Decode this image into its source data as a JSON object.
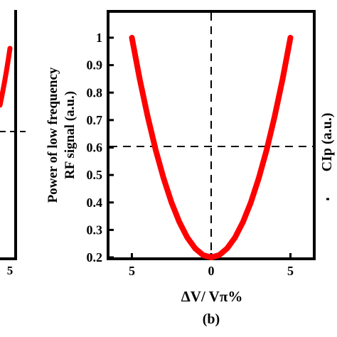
{
  "chart_data": [
    {
      "panel": "left (cropped)",
      "type": "line",
      "x_tick_labels": [
        "5"
      ],
      "series": [
        {
          "color": "#ff0000",
          "x": [
            3.2,
            4.9
          ],
          "y": [
            0.55,
            0.95
          ]
        }
      ],
      "reference_lines": [
        {
          "orientation": "horizontal",
          "style": "dashed",
          "y": 0.6
        }
      ]
    },
    {
      "panel": "b",
      "type": "line",
      "caption": "(b)",
      "xlabel": "ΔV/ Vπ%",
      "ylabel_line1": "Power of low frequency",
      "ylabel_line2": "RF signal (a.u.)",
      "x_tick_labels": [
        "5",
        "0",
        "5"
      ],
      "x_tick_values": [
        -5,
        0,
        5
      ],
      "y_tick_labels": [
        "1",
        "0.9",
        "0.8",
        "0.7",
        "0.6",
        "0.5",
        "0.4",
        "0.3",
        "0.2"
      ],
      "y_tick_values": [
        1,
        0.9,
        0.8,
        0.7,
        0.6,
        0.5,
        0.4,
        0.3,
        0.2
      ],
      "xlim": [
        -6.5,
        6.5
      ],
      "ylim": [
        0.2,
        1.0
      ],
      "grid": false,
      "series": [
        {
          "color": "#ff0000",
          "x": [
            -5,
            -4.5,
            -4,
            -3.5,
            -3,
            -2.5,
            -2,
            -1.5,
            -1,
            -0.5,
            0,
            0.5,
            1,
            1.5,
            2,
            2.5,
            3,
            3.5,
            4,
            4.5,
            5
          ],
          "y": [
            1.0,
            0.848,
            0.712,
            0.592,
            0.488,
            0.4,
            0.328,
            0.272,
            0.232,
            0.208,
            0.2,
            0.208,
            0.232,
            0.272,
            0.328,
            0.4,
            0.488,
            0.592,
            0.712,
            0.848,
            1.0
          ]
        }
      ],
      "reference_lines": [
        {
          "orientation": "horizontal",
          "style": "dashed",
          "y": 0.6
        },
        {
          "orientation": "vertical",
          "style": "dashed",
          "x": 0
        }
      ]
    },
    {
      "panel": "right (cropped)",
      "type": "line",
      "ylabel": "CIp (a.u.)"
    }
  ]
}
